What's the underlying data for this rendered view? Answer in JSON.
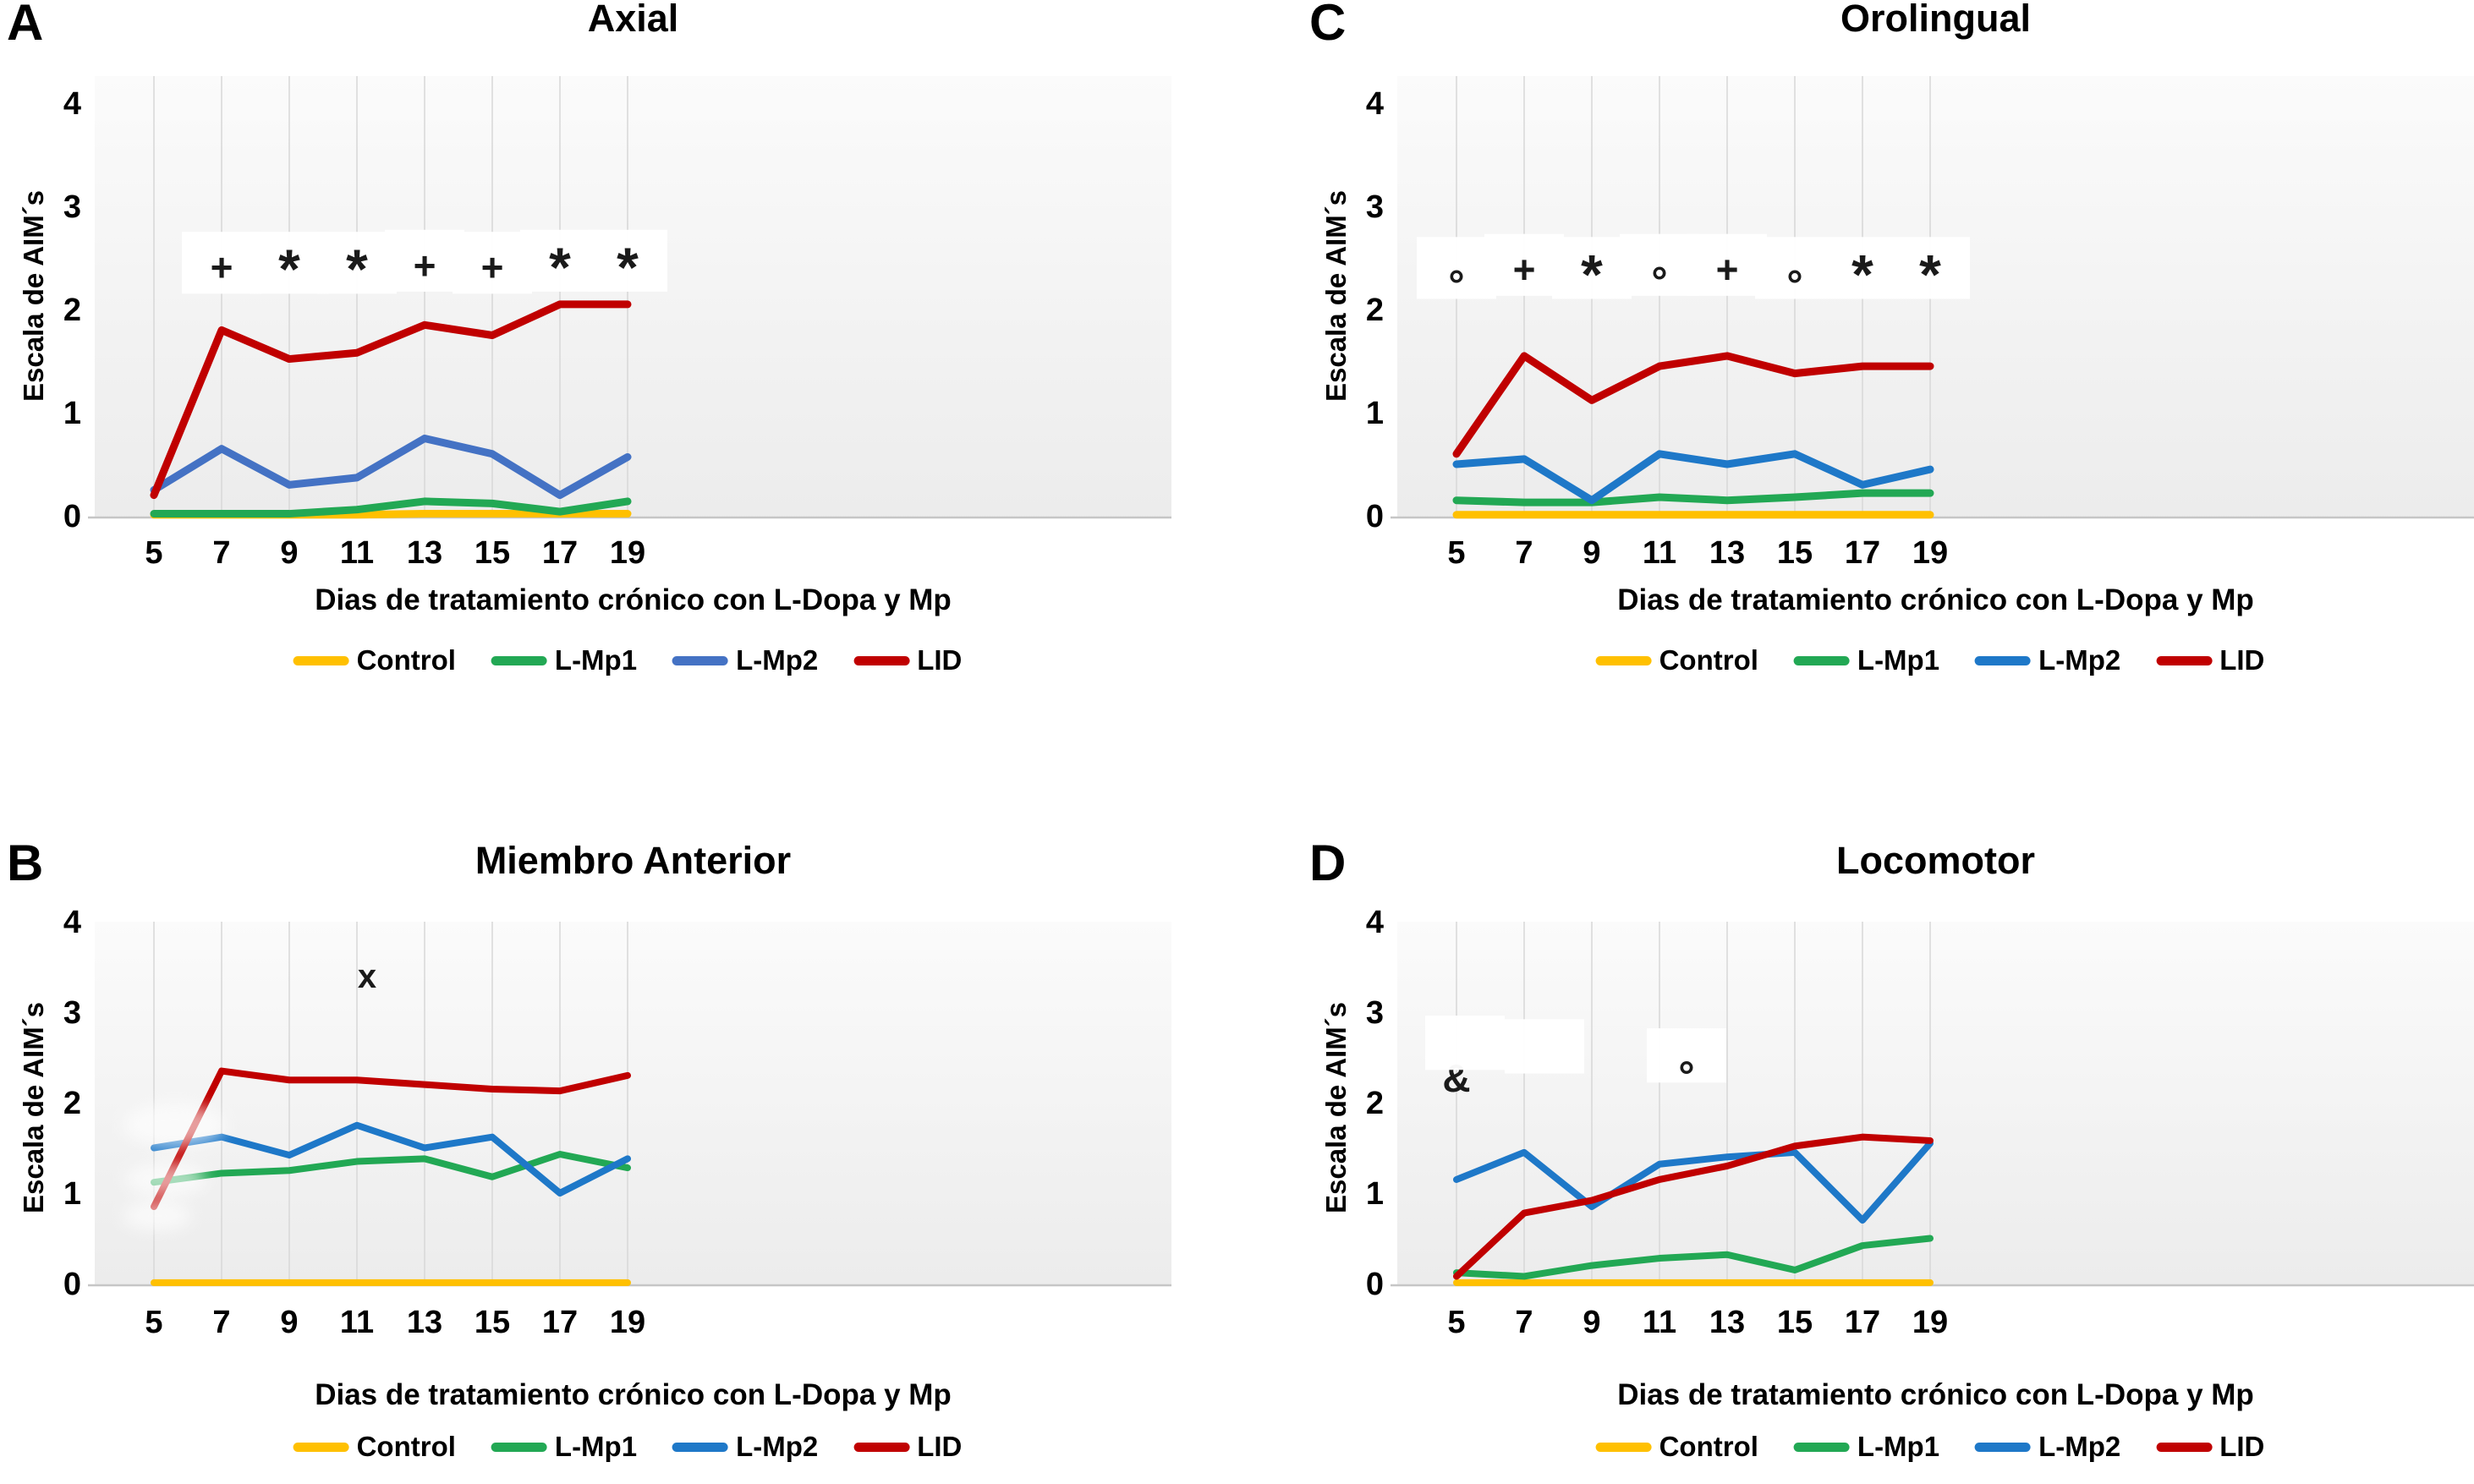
{
  "figure": {
    "panels_order": [
      "A",
      "C",
      "B",
      "D"
    ],
    "series_names": [
      "Control",
      "L-Mp1",
      "L-Mp2",
      "LID"
    ],
    "colors": {
      "control": "#FFC000",
      "lmp1": "#22A854",
      "lmp2_muted": "#4472C4",
      "lmp2_bright": "#1E78C8",
      "lid": "#C00000"
    }
  },
  "chart_data": [
    {
      "panel_label": "A",
      "type": "line",
      "title": "Axial",
      "xlabel": "Dias de tratamiento crónico con L-Dopa y Mp",
      "ylabel": "Escala de AIM´s",
      "x": [
        5,
        7,
        9,
        11,
        13,
        15,
        17,
        19
      ],
      "ylim": [
        0,
        4
      ],
      "yticks": [
        0,
        1,
        2,
        3,
        4
      ],
      "legend_position": "bottom",
      "grid": "vertical",
      "series": [
        {
          "name": "Control",
          "color": "#FFC000",
          "values": [
            0.01,
            0.01,
            0.01,
            0.01,
            0.02,
            0.02,
            0.02,
            0.02
          ]
        },
        {
          "name": "L-Mp1",
          "color": "#22A854",
          "values": [
            0.02,
            0.02,
            0.02,
            0.06,
            0.14,
            0.12,
            0.04,
            0.14
          ]
        },
        {
          "name": "L-Mp2",
          "color": "#4472C4",
          "values": [
            0.25,
            0.65,
            0.3,
            0.37,
            0.75,
            0.6,
            0.2,
            0.57
          ]
        },
        {
          "name": "LID",
          "color": "#C00000",
          "values": [
            0.2,
            1.8,
            1.52,
            1.58,
            1.85,
            1.75,
            2.05,
            2.05
          ]
        }
      ],
      "annotations": [
        {
          "x": 7,
          "y": 2.4,
          "symbol": "+",
          "box": true
        },
        {
          "x": 9,
          "y": 2.4,
          "symbol": "*",
          "box": true
        },
        {
          "x": 11,
          "y": 2.4,
          "symbol": "*",
          "box": true
        },
        {
          "x": 13,
          "y": 2.42,
          "symbol": "+",
          "box": true
        },
        {
          "x": 15,
          "y": 2.4,
          "symbol": "+",
          "box": true
        },
        {
          "x": 17,
          "y": 2.42,
          "symbol": "*",
          "box": true
        },
        {
          "x": 19,
          "y": 2.42,
          "symbol": "*",
          "box": true
        }
      ],
      "smudges": []
    },
    {
      "panel_label": "C",
      "type": "line",
      "title": "Orolingual",
      "xlabel": "Dias de tratamiento crónico con L-Dopa y Mp",
      "ylabel": "Escala de AIM´s",
      "x": [
        5,
        7,
        9,
        11,
        13,
        15,
        17,
        19
      ],
      "ylim": [
        0,
        4
      ],
      "yticks": [
        0,
        1,
        2,
        3,
        4
      ],
      "legend_position": "bottom",
      "grid": "vertical",
      "series": [
        {
          "name": "Control",
          "color": "#FFC000",
          "values": [
            0.01,
            0.01,
            0.01,
            0.01,
            0.01,
            0.01,
            0.01,
            0.01
          ]
        },
        {
          "name": "L-Mp1",
          "color": "#22A854",
          "values": [
            0.15,
            0.13,
            0.13,
            0.18,
            0.15,
            0.18,
            0.22,
            0.22
          ]
        },
        {
          "name": "L-Mp2",
          "color": "#1E78C8",
          "values": [
            0.5,
            0.55,
            0.15,
            0.6,
            0.5,
            0.6,
            0.3,
            0.45
          ]
        },
        {
          "name": "LID",
          "color": "#C00000",
          "values": [
            0.6,
            1.55,
            1.12,
            1.45,
            1.55,
            1.38,
            1.45,
            1.45
          ]
        }
      ],
      "annotations": [
        {
          "x": 5,
          "y": 2.35,
          "symbol": "°",
          "box": true
        },
        {
          "x": 7,
          "y": 2.38,
          "symbol": "+",
          "box": true
        },
        {
          "x": 9,
          "y": 2.35,
          "symbol": "*",
          "box": true
        },
        {
          "x": 11,
          "y": 2.38,
          "symbol": "°",
          "box": true
        },
        {
          "x": 13,
          "y": 2.38,
          "symbol": "+",
          "box": true
        },
        {
          "x": 15,
          "y": 2.35,
          "symbol": "°",
          "box": true
        },
        {
          "x": 17,
          "y": 2.35,
          "symbol": "*",
          "box": true
        },
        {
          "x": 19,
          "y": 2.35,
          "symbol": "*",
          "box": true
        }
      ],
      "smudges": []
    },
    {
      "panel_label": "B",
      "type": "line",
      "title": "Miembro Anterior",
      "xlabel": "Dias de tratamiento crónico con L-Dopa y Mp",
      "ylabel": "Escala de AIM´s",
      "x": [
        5,
        7,
        9,
        11,
        13,
        15,
        17,
        19
      ],
      "ylim": [
        0,
        4
      ],
      "yticks": [
        0,
        1,
        2,
        3,
        4
      ],
      "legend_position": "bottom",
      "grid": "vertical",
      "series": [
        {
          "name": "Control",
          "color": "#FFC000",
          "values": [
            0.01,
            0.01,
            0.01,
            0.01,
            0.01,
            0.01,
            0.01,
            0.01
          ]
        },
        {
          "name": "L-Mp1",
          "color": "#22A854",
          "values": [
            1.12,
            1.22,
            1.25,
            1.35,
            1.38,
            1.18,
            1.43,
            1.28
          ]
        },
        {
          "name": "L-Mp2",
          "color": "#1E78C8",
          "values": [
            1.5,
            1.62,
            1.42,
            1.75,
            1.5,
            1.62,
            1.0,
            1.38
          ]
        },
        {
          "name": "LID",
          "color": "#C00000",
          "values": [
            0.85,
            2.35,
            2.25,
            2.25,
            2.2,
            2.15,
            2.13,
            2.3
          ]
        }
      ],
      "annotations": [
        {
          "x": 11.3,
          "y": 3.4,
          "symbol": "x",
          "box": false
        }
      ],
      "smudges": [
        {
          "x": 5.6,
          "y": 1.75,
          "rx": 60,
          "ry": 26
        },
        {
          "x": 5.35,
          "y": 1.15,
          "rx": 48,
          "ry": 20
        },
        {
          "x": 5.1,
          "y": 0.75,
          "rx": 40,
          "ry": 18
        }
      ]
    },
    {
      "panel_label": "D",
      "type": "line",
      "title": "Locomotor",
      "xlabel": "Dias de tratamiento crónico con L-Dopa y Mp",
      "ylabel": "Escala de AIM´s",
      "x": [
        5,
        7,
        9,
        11,
        13,
        15,
        17,
        19
      ],
      "ylim": [
        0,
        4
      ],
      "yticks": [
        0,
        1,
        2,
        3,
        4
      ],
      "legend_position": "bottom",
      "grid": "vertical",
      "series": [
        {
          "name": "Control",
          "color": "#FFC000",
          "values": [
            0.01,
            0.01,
            0.01,
            0.01,
            0.01,
            0.01,
            0.01,
            0.01
          ]
        },
        {
          "name": "L-Mp1",
          "color": "#22A854",
          "values": [
            0.12,
            0.08,
            0.2,
            0.28,
            0.32,
            0.15,
            0.42,
            0.5
          ]
        },
        {
          "name": "L-Mp2",
          "color": "#1E78C8",
          "values": [
            1.15,
            1.45,
            0.85,
            1.32,
            1.4,
            1.45,
            0.7,
            1.55
          ]
        },
        {
          "name": "LID",
          "color": "#C00000",
          "values": [
            0.08,
            0.78,
            0.92,
            1.15,
            1.3,
            1.52,
            1.62,
            1.58
          ]
        }
      ],
      "annotations": [
        {
          "x": 5.0,
          "y": 2.27,
          "symbol": "&",
          "box": false
        },
        {
          "x": 5.25,
          "y": 2.56,
          "symbol": "",
          "box": true
        },
        {
          "x": 7.6,
          "y": 2.52,
          "symbol": "",
          "box": true
        },
        {
          "x": 11.8,
          "y": 2.42,
          "symbol": "°",
          "box": true
        }
      ],
      "smudges": []
    }
  ]
}
